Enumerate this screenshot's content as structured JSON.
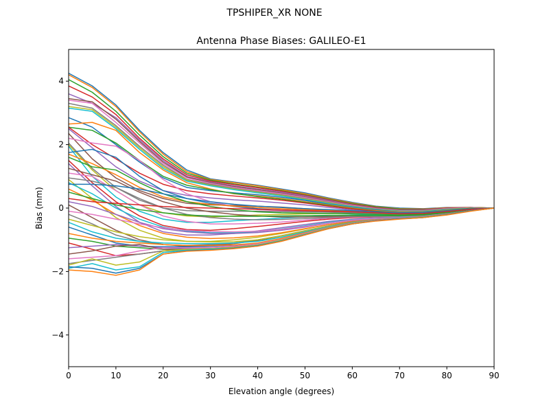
{
  "suptitle": "TPSHIPER_XR     NONE",
  "chart_data": {
    "type": "line",
    "title": "Antenna Phase Biases: GALILEO-E1",
    "xlabel": "Elevation angle (degrees)",
    "ylabel": "Bias (mm)",
    "xlim": [
      0,
      90
    ],
    "ylim": [
      -5,
      5
    ],
    "xticks": [
      0,
      10,
      20,
      30,
      40,
      50,
      60,
      70,
      80,
      90
    ],
    "yticks": [
      -4,
      -2,
      0,
      2,
      4
    ],
    "xtick_labels": [
      "0",
      "10",
      "20",
      "30",
      "40",
      "50",
      "60",
      "70",
      "80",
      "90"
    ],
    "ytick_labels": [
      "−4",
      "−2",
      "0",
      "2",
      "4"
    ],
    "grid": false,
    "legend": "none",
    "palette": [
      "#1f77b4",
      "#ff7f0e",
      "#2ca02c",
      "#d62728",
      "#9467bd",
      "#8c564b",
      "#e377c2",
      "#7f7f7f",
      "#bcbd22",
      "#17becf"
    ],
    "x": [
      0,
      5,
      10,
      15,
      20,
      25,
      30,
      35,
      40,
      45,
      50,
      55,
      60,
      65,
      70,
      75,
      80,
      85,
      90
    ],
    "series": [
      {
        "values": [
          4.25,
          3.85,
          3.25,
          2.45,
          1.75,
          1.2,
          0.92,
          0.82,
          0.72,
          0.6,
          0.48,
          0.32,
          0.18,
          0.06,
          0.0,
          -0.02,
          0.02,
          0.02,
          0.0
        ]
      },
      {
        "values": [
          4.2,
          3.8,
          3.2,
          2.4,
          1.7,
          1.15,
          0.9,
          0.8,
          0.7,
          0.58,
          0.45,
          0.3,
          0.16,
          0.05,
          -0.02,
          -0.03,
          0.01,
          0.02,
          0.0
        ]
      },
      {
        "values": [
          4.05,
          3.65,
          3.05,
          2.3,
          1.62,
          1.1,
          0.88,
          0.76,
          0.66,
          0.55,
          0.42,
          0.28,
          0.14,
          0.04,
          -0.03,
          -0.04,
          0.0,
          0.02,
          0.0
        ]
      },
      {
        "values": [
          3.85,
          3.5,
          2.95,
          2.2,
          1.55,
          1.05,
          0.85,
          0.74,
          0.64,
          0.53,
          0.4,
          0.26,
          0.12,
          0.02,
          -0.05,
          -0.05,
          0.0,
          0.02,
          0.0
        ]
      },
      {
        "values": [
          3.6,
          3.3,
          2.85,
          2.15,
          1.5,
          1.0,
          0.82,
          0.7,
          0.6,
          0.5,
          0.38,
          0.24,
          0.1,
          0.0,
          -0.06,
          -0.06,
          -0.01,
          0.01,
          0.0
        ]
      },
      {
        "values": [
          3.45,
          3.35,
          2.8,
          2.1,
          1.45,
          0.98,
          0.8,
          0.68,
          0.58,
          0.47,
          0.35,
          0.22,
          0.09,
          -0.01,
          -0.07,
          -0.07,
          -0.02,
          0.01,
          0.0
        ]
      },
      {
        "values": [
          3.4,
          3.3,
          2.7,
          2.05,
          1.4,
          0.95,
          0.78,
          0.65,
          0.55,
          0.45,
          0.33,
          0.2,
          0.08,
          -0.02,
          -0.08,
          -0.08,
          -0.02,
          0.01,
          0.0
        ]
      },
      {
        "values": [
          3.3,
          3.15,
          2.6,
          1.95,
          1.35,
          0.9,
          0.75,
          0.62,
          0.52,
          0.42,
          0.3,
          0.18,
          0.06,
          -0.03,
          -0.09,
          -0.09,
          -0.03,
          0.0,
          0.0
        ]
      },
      {
        "values": [
          3.2,
          3.1,
          2.55,
          1.9,
          1.3,
          0.88,
          0.72,
          0.6,
          0.5,
          0.4,
          0.28,
          0.16,
          0.05,
          -0.04,
          -0.1,
          -0.1,
          -0.04,
          0.0,
          0.0
        ]
      },
      {
        "values": [
          3.15,
          3.05,
          2.5,
          1.85,
          1.25,
          0.85,
          0.7,
          0.58,
          0.48,
          0.38,
          0.26,
          0.14,
          0.04,
          -0.05,
          -0.11,
          -0.11,
          -0.05,
          -0.01,
          0.0
        ]
      },
      {
        "values": [
          2.85,
          2.55,
          2.0,
          1.45,
          0.95,
          0.65,
          0.55,
          0.48,
          0.42,
          0.34,
          0.24,
          0.12,
          0.02,
          -0.06,
          -0.12,
          -0.12,
          -0.06,
          -0.01,
          0.0
        ]
      },
      {
        "values": [
          2.65,
          2.7,
          2.45,
          1.75,
          1.2,
          0.8,
          0.6,
          0.45,
          0.38,
          0.3,
          0.2,
          0.1,
          0.0,
          -0.08,
          -0.13,
          -0.13,
          -0.07,
          -0.02,
          0.0
        ]
      },
      {
        "values": [
          2.55,
          2.45,
          2.05,
          1.5,
          1.0,
          0.72,
          0.58,
          0.46,
          0.36,
          0.28,
          0.18,
          0.08,
          -0.02,
          -0.1,
          -0.15,
          -0.14,
          -0.08,
          -0.02,
          0.0
        ]
      },
      {
        "values": [
          2.55,
          2.0,
          1.55,
          1.1,
          0.75,
          0.55,
          0.45,
          0.38,
          0.32,
          0.25,
          0.16,
          0.06,
          -0.03,
          -0.11,
          -0.16,
          -0.15,
          -0.09,
          -0.03,
          0.0
        ]
      },
      {
        "values": [
          2.5,
          1.9,
          1.3,
          0.85,
          0.55,
          0.4,
          0.32,
          0.26,
          0.22,
          0.16,
          0.1,
          0.02,
          -0.06,
          -0.13,
          -0.17,
          -0.16,
          -0.1,
          -0.03,
          0.0
        ]
      },
      {
        "values": [
          2.35,
          1.55,
          0.95,
          0.55,
          0.3,
          0.15,
          0.1,
          0.08,
          0.06,
          0.03,
          -0.02,
          -0.06,
          -0.1,
          -0.15,
          -0.18,
          -0.17,
          -0.11,
          -0.04,
          0.0
        ]
      },
      {
        "values": [
          2.2,
          2.05,
          1.95,
          1.5,
          0.9,
          0.45,
          0.2,
          0.05,
          -0.05,
          -0.08,
          -0.1,
          -0.12,
          -0.14,
          -0.17,
          -0.2,
          -0.18,
          -0.12,
          -0.05,
          0.0
        ]
      },
      {
        "values": [
          2.05,
          1.25,
          0.65,
          0.25,
          0.0,
          -0.08,
          -0.1,
          -0.1,
          -0.1,
          -0.11,
          -0.12,
          -0.13,
          -0.15,
          -0.18,
          -0.21,
          -0.19,
          -0.13,
          -0.05,
          0.0
        ]
      },
      {
        "values": [
          2.0,
          1.2,
          0.55,
          0.1,
          -0.15,
          -0.25,
          -0.28,
          -0.25,
          -0.22,
          -0.2,
          -0.18,
          -0.17,
          -0.18,
          -0.2,
          -0.22,
          -0.2,
          -0.14,
          -0.06,
          0.0
        ]
      },
      {
        "values": [
          1.95,
          1.0,
          0.35,
          -0.1,
          -0.35,
          -0.45,
          -0.45,
          -0.4,
          -0.36,
          -0.32,
          -0.28,
          -0.24,
          -0.22,
          -0.22,
          -0.23,
          -0.21,
          -0.15,
          -0.06,
          0.0
        ]
      },
      {
        "values": [
          1.75,
          1.85,
          1.6,
          1.0,
          0.55,
          0.3,
          0.15,
          0.05,
          -0.02,
          -0.06,
          -0.08,
          -0.1,
          -0.12,
          -0.15,
          -0.18,
          -0.17,
          -0.11,
          -0.04,
          0.0
        ]
      },
      {
        "values": [
          1.7,
          1.4,
          1.05,
          0.65,
          0.35,
          0.2,
          0.12,
          0.06,
          0.02,
          -0.02,
          -0.05,
          -0.08,
          -0.1,
          -0.14,
          -0.17,
          -0.16,
          -0.1,
          -0.04,
          0.0
        ]
      },
      {
        "values": [
          1.6,
          1.3,
          1.2,
          0.8,
          0.45,
          0.2,
          0.05,
          -0.05,
          -0.12,
          -0.15,
          -0.16,
          -0.17,
          -0.18,
          -0.2,
          -0.22,
          -0.2,
          -0.14,
          -0.06,
          0.0
        ]
      },
      {
        "values": [
          1.5,
          0.8,
          0.2,
          -0.25,
          -0.55,
          -0.68,
          -0.7,
          -0.65,
          -0.58,
          -0.5,
          -0.42,
          -0.35,
          -0.3,
          -0.28,
          -0.27,
          -0.24,
          -0.17,
          -0.07,
          0.0
        ]
      },
      {
        "values": [
          1.4,
          0.7,
          0.05,
          -0.45,
          -0.75,
          -0.85,
          -0.85,
          -0.8,
          -0.72,
          -0.62,
          -0.52,
          -0.42,
          -0.35,
          -0.31,
          -0.29,
          -0.26,
          -0.18,
          -0.08,
          0.0
        ]
      },
      {
        "values": [
          1.25,
          1.05,
          0.85,
          0.5,
          0.2,
          0.0,
          -0.12,
          -0.2,
          -0.25,
          -0.28,
          -0.28,
          -0.27,
          -0.26,
          -0.26,
          -0.26,
          -0.23,
          -0.16,
          -0.07,
          0.0
        ]
      },
      {
        "values": [
          1.1,
          1.0,
          0.55,
          0.1,
          -0.25,
          -0.42,
          -0.5,
          -0.5,
          -0.48,
          -0.44,
          -0.38,
          -0.32,
          -0.28,
          -0.27,
          -0.26,
          -0.24,
          -0.17,
          -0.07,
          0.0
        ]
      },
      {
        "values": [
          0.95,
          0.85,
          0.65,
          0.3,
          0.0,
          -0.2,
          -0.3,
          -0.35,
          -0.37,
          -0.36,
          -0.33,
          -0.3,
          -0.27,
          -0.26,
          -0.25,
          -0.23,
          -0.16,
          -0.07,
          0.0
        ]
      },
      {
        "values": [
          0.9,
          0.3,
          -0.3,
          -0.7,
          -0.95,
          -1.05,
          -1.05,
          -1.0,
          -0.92,
          -0.8,
          -0.66,
          -0.52,
          -0.42,
          -0.35,
          -0.31,
          -0.27,
          -0.19,
          -0.08,
          0.0
        ]
      },
      {
        "values": [
          0.8,
          0.45,
          0.0,
          -0.35,
          -0.6,
          -0.72,
          -0.78,
          -0.78,
          -0.74,
          -0.66,
          -0.56,
          -0.45,
          -0.37,
          -0.32,
          -0.29,
          -0.26,
          -0.18,
          -0.08,
          0.0
        ]
      },
      {
        "values": [
          0.75,
          0.75,
          0.7,
          0.6,
          0.45,
          0.3,
          0.2,
          0.12,
          0.06,
          0.02,
          -0.02,
          -0.05,
          -0.08,
          -0.12,
          -0.15,
          -0.14,
          -0.09,
          -0.03,
          0.0
        ]
      },
      {
        "values": [
          0.6,
          0.25,
          -0.2,
          -0.55,
          -0.8,
          -0.92,
          -0.96,
          -0.94,
          -0.88,
          -0.78,
          -0.65,
          -0.52,
          -0.42,
          -0.35,
          -0.31,
          -0.27,
          -0.19,
          -0.08,
          0.0
        ]
      },
      {
        "values": [
          0.5,
          0.3,
          0.1,
          -0.05,
          -0.15,
          -0.22,
          -0.25,
          -0.26,
          -0.26,
          -0.25,
          -0.24,
          -0.23,
          -0.23,
          -0.24,
          -0.24,
          -0.22,
          -0.15,
          -0.06,
          0.0
        ]
      },
      {
        "values": [
          0.3,
          0.2,
          0.15,
          0.1,
          0.05,
          0.02,
          0.0,
          -0.02,
          -0.04,
          -0.06,
          -0.08,
          -0.1,
          -0.12,
          -0.15,
          -0.18,
          -0.17,
          -0.11,
          -0.04,
          0.0
        ]
      },
      {
        "values": [
          0.2,
          0.05,
          -0.2,
          -0.45,
          -0.65,
          -0.75,
          -0.8,
          -0.8,
          -0.77,
          -0.7,
          -0.6,
          -0.48,
          -0.39,
          -0.33,
          -0.3,
          -0.26,
          -0.18,
          -0.08,
          0.0
        ]
      },
      {
        "values": [
          0.1,
          -0.3,
          -0.7,
          -1.0,
          -1.15,
          -1.2,
          -1.18,
          -1.12,
          -1.02,
          -0.88,
          -0.72,
          -0.57,
          -0.45,
          -0.37,
          -0.32,
          -0.28,
          -0.2,
          -0.09,
          0.0
        ]
      },
      {
        "values": [
          -0.1,
          -0.2,
          -0.35,
          -0.5,
          -0.62,
          -0.7,
          -0.74,
          -0.75,
          -0.73,
          -0.67,
          -0.58,
          -0.47,
          -0.38,
          -0.33,
          -0.3,
          -0.26,
          -0.18,
          -0.08,
          0.0
        ]
      },
      {
        "values": [
          -0.2,
          -0.5,
          -0.85,
          -1.05,
          -1.15,
          -1.18,
          -1.15,
          -1.1,
          -1.0,
          -0.87,
          -0.71,
          -0.56,
          -0.44,
          -0.36,
          -0.31,
          -0.27,
          -0.19,
          -0.08,
          0.0
        ]
      },
      {
        "values": [
          -0.35,
          -0.55,
          -0.75,
          -0.9,
          -1.0,
          -1.05,
          -1.07,
          -1.06,
          -1.0,
          -0.88,
          -0.72,
          -0.57,
          -0.45,
          -0.37,
          -0.32,
          -0.28,
          -0.2,
          -0.09,
          0.0
        ]
      },
      {
        "values": [
          -0.45,
          -0.75,
          -0.95,
          -1.05,
          -1.1,
          -1.12,
          -1.12,
          -1.1,
          -1.05,
          -0.92,
          -0.75,
          -0.59,
          -0.46,
          -0.38,
          -0.32,
          -0.28,
          -0.2,
          -0.09,
          0.0
        ]
      },
      {
        "values": [
          -0.6,
          -0.85,
          -1.1,
          -1.2,
          -1.22,
          -1.22,
          -1.2,
          -1.17,
          -1.12,
          -0.98,
          -0.8,
          -0.62,
          -0.48,
          -0.39,
          -0.33,
          -0.29,
          -0.21,
          -0.09,
          0.0
        ]
      },
      {
        "values": [
          -0.8,
          -0.95,
          -1.05,
          -1.1,
          -1.15,
          -1.18,
          -1.18,
          -1.16,
          -1.1,
          -0.96,
          -0.78,
          -0.61,
          -0.47,
          -0.38,
          -0.33,
          -0.28,
          -0.2,
          -0.09,
          0.0
        ]
      },
      {
        "values": [
          -0.95,
          -1.05,
          -1.2,
          -1.25,
          -1.3,
          -1.3,
          -1.28,
          -1.25,
          -1.18,
          -1.02,
          -0.82,
          -0.64,
          -0.49,
          -0.4,
          -0.34,
          -0.29,
          -0.21,
          -0.09,
          0.0
        ]
      },
      {
        "values": [
          -1.1,
          -1.3,
          -1.5,
          -1.45,
          -1.35,
          -1.3,
          -1.28,
          -1.22,
          -1.14,
          -0.99,
          -0.8,
          -0.62,
          -0.48,
          -0.39,
          -0.33,
          -0.29,
          -0.21,
          -0.09,
          0.0
        ]
      },
      {
        "values": [
          -1.25,
          -1.2,
          -1.15,
          -1.2,
          -1.25,
          -1.28,
          -1.27,
          -1.24,
          -1.17,
          -1.02,
          -0.82,
          -0.63,
          -0.49,
          -0.4,
          -0.34,
          -0.29,
          -0.21,
          -0.09,
          0.0
        ]
      },
      {
        "values": [
          -1.45,
          -1.35,
          -1.2,
          -1.15,
          -1.3,
          -1.32,
          -1.3,
          -1.27,
          -1.2,
          -1.04,
          -0.84,
          -0.65,
          -0.5,
          -0.4,
          -0.34,
          -0.3,
          -0.21,
          -0.09,
          0.0
        ]
      },
      {
        "values": [
          -1.6,
          -1.55,
          -1.5,
          -1.35,
          -1.25,
          -1.25,
          -1.24,
          -1.2,
          -1.13,
          -0.99,
          -0.8,
          -0.62,
          -0.48,
          -0.39,
          -0.33,
          -0.29,
          -0.21,
          -0.09,
          0.0
        ]
      },
      {
        "values": [
          -1.75,
          -1.65,
          -1.55,
          -1.45,
          -1.35,
          -1.32,
          -1.3,
          -1.26,
          -1.18,
          -1.03,
          -0.83,
          -0.64,
          -0.49,
          -0.4,
          -0.34,
          -0.29,
          -0.21,
          -0.09,
          0.0
        ]
      },
      {
        "values": [
          -1.8,
          -1.6,
          -1.8,
          -1.7,
          -1.35,
          -1.3,
          -1.28,
          -1.24,
          -1.16,
          -1.01,
          -0.82,
          -0.63,
          -0.49,
          -0.4,
          -0.34,
          -0.29,
          -0.21,
          -0.09,
          0.0
        ]
      },
      {
        "values": [
          -1.9,
          -1.75,
          -1.95,
          -1.85,
          -1.4,
          -1.33,
          -1.3,
          -1.26,
          -1.18,
          -1.03,
          -0.83,
          -0.64,
          -0.49,
          -0.4,
          -0.34,
          -0.29,
          -0.21,
          -0.09,
          0.0
        ]
      },
      {
        "values": [
          -1.85,
          -1.9,
          -2.05,
          -1.9,
          -1.45,
          -1.35,
          -1.32,
          -1.27,
          -1.19,
          -1.04,
          -0.84,
          -0.65,
          -0.5,
          -0.4,
          -0.34,
          -0.3,
          -0.21,
          -0.09,
          0.0
        ]
      },
      {
        "values": [
          -1.95,
          -2.0,
          -2.12,
          -1.95,
          -1.45,
          -1.36,
          -1.33,
          -1.28,
          -1.2,
          -1.05,
          -0.85,
          -0.65,
          -0.5,
          -0.41,
          -0.35,
          -0.3,
          -0.22,
          -0.1,
          0.0
        ]
      }
    ]
  }
}
